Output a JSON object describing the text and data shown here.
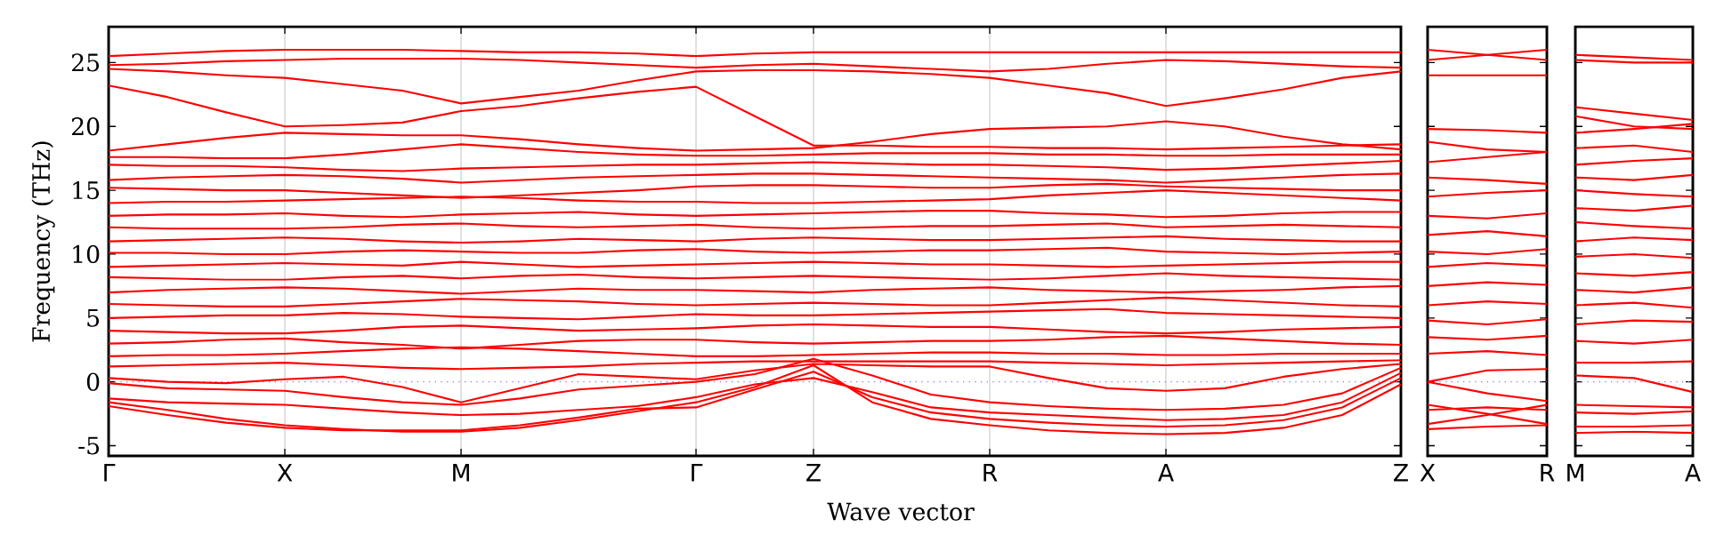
{
  "chart_data": [
    {
      "type": "line",
      "ylabel": "Frequency (THz)",
      "xlabel": "Wave vector",
      "color": "#ff0000",
      "grid": "x",
      "categories": [
        "Γ",
        null,
        null,
        "X",
        null,
        null,
        "M",
        null,
        null,
        null,
        "Γ",
        null,
        "Z",
        null,
        null,
        "R",
        null,
        null,
        "A",
        null,
        null,
        null,
        "Z"
      ],
      "ylim": [
        -5.8,
        27.8
      ],
      "yticks": [
        -5,
        0,
        5,
        10,
        15,
        20,
        25
      ],
      "ref_lines": [
        {
          "axis": "y",
          "value": 0,
          "color": "#8080ff",
          "line_style": "dotted"
        }
      ],
      "series": [
        {
          "values": [
            -1.6,
            -2.2,
            -2.9,
            -3.4,
            -3.7,
            -3.9,
            -3.9,
            -3.6,
            -3.0,
            -2.3,
            -1.6,
            -0.4,
            1.3,
            -1.6,
            -2.9,
            -3.4,
            -3.8,
            -4.0,
            -4.1,
            -4.0,
            -3.6,
            -2.6,
            -0.2
          ]
        },
        {
          "values": [
            -1.9,
            -2.6,
            -3.2,
            -3.6,
            -3.8,
            -3.8,
            -3.8,
            -3.4,
            -2.8,
            -2.1,
            -2.0,
            -0.6,
            0.8,
            -1.2,
            -2.4,
            -2.9,
            -3.2,
            -3.4,
            -3.5,
            -3.4,
            -3.0,
            -2.0,
            0.3
          ]
        },
        {
          "values": [
            -1.3,
            -1.6,
            -1.7,
            -1.8,
            -2.1,
            -2.4,
            -2.6,
            -2.5,
            -2.2,
            -1.9,
            -1.2,
            -0.2,
            0.3,
            -0.8,
            -2.0,
            -2.4,
            -2.6,
            -2.8,
            -3.0,
            -2.9,
            -2.6,
            -1.6,
            0.7
          ]
        },
        {
          "values": [
            -0.1,
            -0.5,
            -0.6,
            -0.7,
            -1.2,
            -1.6,
            -1.8,
            -1.3,
            -0.6,
            -0.3,
            0.0,
            0.6,
            1.8,
            0.5,
            -1.0,
            -1.6,
            -1.9,
            -2.1,
            -2.2,
            -2.1,
            -1.8,
            -0.9,
            1.1
          ]
        },
        {
          "values": [
            0.3,
            0.0,
            -0.1,
            0.2,
            0.4,
            -0.4,
            -1.6,
            -0.5,
            0.6,
            0.4,
            0.2,
            0.9,
            1.4,
            1.3,
            1.2,
            1.2,
            0.3,
            -0.5,
            -0.7,
            -0.5,
            0.4,
            1.0,
            1.4
          ]
        },
        {
          "values": [
            1.2,
            1.3,
            1.4,
            1.5,
            1.3,
            1.1,
            1.0,
            1.1,
            1.2,
            1.4,
            1.5,
            1.6,
            1.6,
            1.6,
            1.6,
            1.6,
            1.5,
            1.4,
            1.3,
            1.4,
            1.5,
            1.6,
            1.7
          ]
        },
        {
          "values": [
            2.0,
            2.1,
            2.1,
            2.2,
            2.4,
            2.6,
            2.7,
            2.6,
            2.4,
            2.2,
            2.0,
            2.0,
            2.1,
            2.2,
            2.3,
            2.3,
            2.2,
            2.2,
            2.1,
            2.1,
            2.2,
            2.2,
            2.2
          ]
        },
        {
          "values": [
            3.0,
            3.1,
            3.3,
            3.4,
            3.1,
            2.9,
            2.6,
            2.9,
            3.2,
            3.3,
            3.3,
            3.1,
            3.0,
            3.1,
            3.2,
            3.2,
            3.3,
            3.5,
            3.6,
            3.4,
            3.2,
            3.0,
            2.9
          ]
        },
        {
          "values": [
            4.0,
            3.9,
            3.8,
            3.8,
            4.0,
            4.3,
            4.4,
            4.2,
            4.0,
            4.1,
            4.2,
            4.4,
            4.5,
            4.4,
            4.3,
            4.3,
            4.1,
            3.9,
            3.8,
            3.9,
            4.1,
            4.2,
            4.3
          ]
        },
        {
          "values": [
            5.0,
            5.1,
            5.2,
            5.2,
            5.4,
            5.3,
            5.1,
            5.0,
            4.9,
            5.1,
            5.3,
            5.2,
            5.2,
            5.3,
            5.4,
            5.5,
            5.6,
            5.7,
            5.4,
            5.3,
            5.2,
            5.1,
            5.0
          ]
        },
        {
          "values": [
            6.1,
            6.0,
            5.9,
            5.9,
            6.1,
            6.3,
            6.5,
            6.4,
            6.3,
            6.1,
            6.0,
            6.1,
            6.2,
            6.1,
            6.0,
            6.0,
            6.2,
            6.4,
            6.6,
            6.4,
            6.2,
            6.0,
            5.9
          ]
        },
        {
          "values": [
            7.0,
            7.2,
            7.3,
            7.4,
            7.3,
            7.1,
            6.9,
            7.1,
            7.3,
            7.2,
            7.2,
            7.1,
            7.0,
            7.2,
            7.3,
            7.4,
            7.2,
            7.1,
            7.0,
            7.1,
            7.2,
            7.4,
            7.5
          ]
        },
        {
          "values": [
            8.2,
            8.1,
            8.0,
            8.0,
            8.2,
            8.3,
            8.1,
            8.3,
            8.4,
            8.2,
            8.1,
            8.2,
            8.3,
            8.2,
            8.1,
            8.0,
            8.1,
            8.3,
            8.5,
            8.3,
            8.2,
            8.1,
            8.0
          ]
        },
        {
          "values": [
            9.0,
            9.1,
            9.2,
            9.3,
            9.2,
            9.1,
            9.4,
            9.2,
            9.0,
            9.1,
            9.2,
            9.3,
            9.4,
            9.3,
            9.2,
            9.2,
            9.1,
            9.0,
            9.1,
            9.2,
            9.3,
            9.4,
            9.4
          ]
        },
        {
          "values": [
            10.1,
            10.1,
            10.0,
            10.0,
            10.2,
            10.3,
            10.2,
            10.1,
            10.1,
            10.3,
            10.4,
            10.2,
            10.1,
            10.2,
            10.3,
            10.3,
            10.4,
            10.5,
            10.2,
            10.1,
            10.0,
            10.1,
            10.2
          ]
        },
        {
          "values": [
            11.0,
            11.1,
            11.2,
            11.3,
            11.2,
            11.0,
            10.9,
            11.0,
            11.2,
            11.1,
            11.0,
            11.2,
            11.3,
            11.2,
            11.1,
            11.1,
            11.2,
            11.3,
            11.4,
            11.2,
            11.1,
            11.0,
            11.0
          ]
        },
        {
          "values": [
            12.1,
            12.0,
            12.0,
            12.0,
            12.1,
            12.3,
            12.4,
            12.2,
            12.1,
            12.2,
            12.3,
            12.1,
            12.0,
            12.1,
            12.2,
            12.2,
            12.3,
            12.4,
            12.1,
            12.2,
            12.3,
            12.2,
            12.1
          ]
        },
        {
          "values": [
            13.0,
            13.1,
            13.1,
            13.2,
            13.0,
            12.9,
            13.1,
            13.2,
            13.3,
            13.1,
            13.0,
            13.1,
            13.2,
            13.3,
            13.4,
            13.4,
            13.2,
            13.1,
            12.9,
            13.0,
            13.2,
            13.3,
            13.3
          ]
        },
        {
          "values": [
            14.0,
            14.1,
            14.1,
            14.2,
            14.3,
            14.4,
            14.5,
            14.4,
            14.2,
            14.1,
            14.1,
            14.0,
            14.0,
            14.1,
            14.2,
            14.3,
            14.6,
            14.8,
            15.0,
            14.8,
            14.6,
            14.4,
            14.2
          ]
        },
        {
          "values": [
            15.2,
            15.1,
            15.0,
            15.0,
            14.8,
            14.6,
            14.4,
            14.6,
            14.8,
            15.0,
            15.3,
            15.4,
            15.4,
            15.3,
            15.2,
            15.2,
            15.4,
            15.5,
            15.3,
            15.2,
            15.1,
            15.0,
            15.0
          ]
        },
        {
          "values": [
            15.8,
            16.0,
            16.1,
            16.2,
            16.1,
            15.9,
            15.6,
            15.8,
            16.0,
            16.1,
            16.2,
            16.3,
            16.3,
            16.2,
            16.1,
            16.0,
            15.9,
            15.8,
            15.6,
            15.8,
            16.0,
            16.2,
            16.3
          ]
        },
        {
          "values": [
            17.0,
            16.9,
            16.9,
            16.8,
            16.6,
            16.5,
            16.7,
            16.8,
            16.9,
            17.0,
            17.0,
            17.1,
            17.2,
            17.1,
            17.0,
            17.0,
            16.9,
            16.8,
            16.6,
            16.7,
            16.9,
            17.1,
            17.3
          ]
        },
        {
          "values": [
            17.6,
            17.6,
            17.5,
            17.5,
            17.8,
            18.2,
            18.6,
            18.3,
            18.0,
            17.8,
            17.7,
            17.7,
            17.8,
            17.9,
            17.9,
            17.9,
            17.8,
            17.8,
            17.7,
            17.7,
            17.8,
            17.8,
            17.8
          ]
        },
        {
          "values": [
            18.1,
            18.6,
            19.1,
            19.5,
            19.4,
            19.3,
            19.3,
            19.0,
            18.6,
            18.3,
            18.1,
            18.2,
            18.3,
            18.8,
            19.4,
            19.8,
            19.9,
            20.0,
            20.4,
            20.0,
            19.2,
            18.6,
            18.2
          ]
        },
        {
          "values": [
            23.2,
            22.3,
            21.1,
            20.0,
            20.1,
            20.3,
            21.2,
            21.6,
            22.2,
            22.7,
            23.1,
            20.8,
            18.5,
            18.5,
            18.4,
            18.4,
            18.3,
            18.3,
            18.2,
            18.3,
            18.4,
            18.5,
            18.6
          ]
        },
        {
          "values": [
            24.5,
            24.3,
            24.0,
            23.8,
            23.3,
            22.8,
            21.8,
            22.3,
            22.8,
            23.6,
            24.3,
            24.4,
            24.4,
            24.3,
            24.1,
            23.8,
            23.2,
            22.6,
            21.6,
            22.2,
            22.9,
            23.8,
            24.3
          ]
        },
        {
          "values": [
            24.8,
            24.9,
            25.1,
            25.2,
            25.3,
            25.3,
            25.3,
            25.2,
            25.0,
            24.8,
            24.6,
            24.8,
            24.9,
            24.7,
            24.5,
            24.3,
            24.5,
            24.9,
            25.2,
            25.1,
            24.9,
            24.7,
            24.6
          ]
        },
        {
          "values": [
            25.5,
            25.7,
            25.9,
            26.0,
            26.0,
            26.0,
            25.9,
            25.8,
            25.8,
            25.7,
            25.5,
            25.7,
            25.8,
            25.8,
            25.8,
            25.8,
            25.8,
            25.8,
            25.8,
            25.8,
            25.8,
            25.8,
            25.8
          ]
        }
      ]
    },
    {
      "type": "line",
      "color": "#ff0000",
      "tick_labels": "x",
      "categories": [
        "X",
        null,
        "R"
      ],
      "ylim": [
        -5.8,
        27.8
      ],
      "yticks": [
        -5,
        0,
        5,
        10,
        15,
        20,
        25
      ],
      "ref_lines": [
        {
          "axis": "y",
          "value": 0,
          "color": "#8080ff",
          "line_style": "dotted"
        }
      ],
      "series": [
        {
          "values": [
            -3.7,
            -3.5,
            -3.4
          ]
        },
        {
          "values": [
            -3.3,
            -2.6,
            -1.8
          ]
        },
        {
          "values": [
            -1.8,
            -2.5,
            -3.3
          ]
        },
        {
          "values": [
            -2.2,
            -2.0,
            -2.2
          ]
        },
        {
          "values": [
            0.0,
            -0.9,
            -1.5
          ]
        },
        {
          "values": [
            0.0,
            0.9,
            1.0
          ]
        },
        {
          "values": [
            2.2,
            2.4,
            2.1
          ]
        },
        {
          "values": [
            3.5,
            3.3,
            3.6
          ]
        },
        {
          "values": [
            4.8,
            4.5,
            4.9
          ]
        },
        {
          "values": [
            6.0,
            6.3,
            6.1
          ]
        },
        {
          "values": [
            7.5,
            7.8,
            7.6
          ]
        },
        {
          "values": [
            9.0,
            9.3,
            9.1
          ]
        },
        {
          "values": [
            10.2,
            10.0,
            10.4
          ]
        },
        {
          "values": [
            11.5,
            11.8,
            11.4
          ]
        },
        {
          "values": [
            13.0,
            12.8,
            13.2
          ]
        },
        {
          "values": [
            14.5,
            14.8,
            15.0
          ]
        },
        {
          "values": [
            16.0,
            15.8,
            15.5
          ]
        },
        {
          "values": [
            17.2,
            17.6,
            18.0
          ]
        },
        {
          "values": [
            18.8,
            18.2,
            18.0
          ]
        },
        {
          "values": [
            19.8,
            19.7,
            19.5
          ]
        },
        {
          "values": [
            24.0,
            24.0,
            24.0
          ]
        },
        {
          "values": [
            25.2,
            25.6,
            26.0
          ]
        },
        {
          "values": [
            26.0,
            25.6,
            25.2
          ]
        }
      ]
    },
    {
      "type": "line",
      "color": "#ff0000",
      "tick_labels": "x",
      "categories": [
        "M",
        null,
        "A"
      ],
      "ylim": [
        -5.8,
        27.8
      ],
      "yticks": [
        -5,
        0,
        5,
        10,
        15,
        20,
        25
      ],
      "ref_lines": [
        {
          "axis": "y",
          "value": 0,
          "color": "#8080ff",
          "line_style": "dotted"
        }
      ],
      "series": [
        {
          "values": [
            -4.0,
            -3.9,
            -4.0
          ]
        },
        {
          "values": [
            -3.5,
            -3.5,
            -3.4
          ]
        },
        {
          "values": [
            -2.4,
            -2.5,
            -2.3
          ]
        },
        {
          "values": [
            -1.8,
            -1.9,
            -2.0
          ]
        },
        {
          "values": [
            0.5,
            0.3,
            -0.8
          ]
        },
        {
          "values": [
            1.5,
            1.5,
            1.6
          ]
        },
        {
          "values": [
            3.2,
            3.0,
            3.3
          ]
        },
        {
          "values": [
            4.5,
            4.8,
            4.7
          ]
        },
        {
          "values": [
            6.0,
            6.2,
            5.8
          ]
        },
        {
          "values": [
            7.2,
            7.0,
            7.4
          ]
        },
        {
          "values": [
            8.5,
            8.3,
            8.6
          ]
        },
        {
          "values": [
            9.8,
            10.0,
            9.7
          ]
        },
        {
          "values": [
            11.0,
            11.3,
            11.1
          ]
        },
        {
          "values": [
            12.5,
            12.2,
            12.0
          ]
        },
        {
          "values": [
            13.6,
            13.4,
            13.8
          ]
        },
        {
          "values": [
            15.0,
            14.7,
            14.5
          ]
        },
        {
          "values": [
            16.0,
            15.8,
            16.2
          ]
        },
        {
          "values": [
            17.0,
            17.3,
            17.5
          ]
        },
        {
          "values": [
            18.3,
            18.5,
            18.0
          ]
        },
        {
          "values": [
            19.5,
            19.8,
            20.2
          ]
        },
        {
          "values": [
            20.8,
            20.0,
            19.8
          ]
        },
        {
          "values": [
            21.5,
            21.0,
            20.5
          ]
        },
        {
          "values": [
            25.2,
            25.0,
            25.0
          ]
        },
        {
          "values": [
            25.6,
            25.4,
            25.2
          ]
        }
      ]
    }
  ]
}
